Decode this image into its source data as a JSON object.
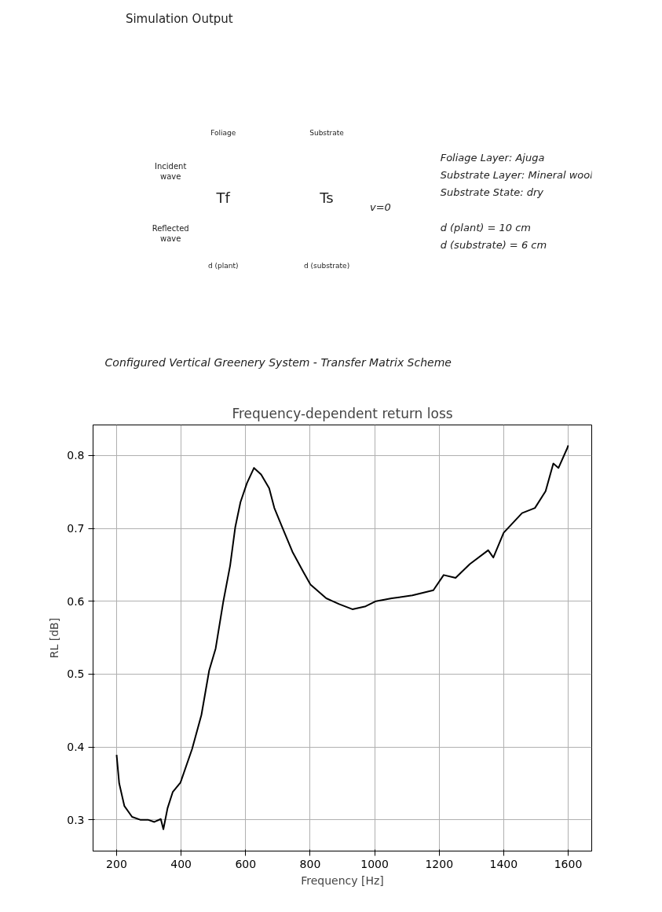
{
  "chart_data": [
    {
      "type": "other",
      "annotations": [
        "Simulation Output",
        "Foliage",
        "Substrate",
        "Incident\nwave",
        "Tf",
        "Ts",
        "Reflected\nwave",
        "d (plant)",
        "d (substrate)",
        "v=0",
        "Foliage Layer: Ajuga",
        "Substrate Layer: Mineral wool",
        "Substrate State: dry",
        "d (plant) = 10 cm",
        "d (substrate) = 6 cm",
        "Configured Vertical Greenery System - Transfer Matrix Scheme"
      ]
    },
    {
      "type": "line",
      "title": "Frequency-dependent return loss",
      "xlabel": "Frequency [Hz]",
      "ylabel": "RL [dB]",
      "series": [
        {
          "color": "#000000",
          "x": [
            200,
            208,
            224,
            248,
            273,
            297,
            317,
            337,
            345,
            358,
            374,
            398,
            434,
            463,
            487,
            507,
            531,
            552,
            568,
            584,
            604,
            626,
            648,
            673,
            689,
            713,
            745,
            778,
            801,
            850,
            890,
            931,
            972,
            1004,
            1053,
            1117,
            1182,
            1214,
            1251,
            1295,
            1352,
            1368,
            1400,
            1457,
            1497,
            1530,
            1554,
            1570,
            1598,
            1600
          ],
          "values": [
            0.389,
            0.35,
            0.319,
            0.304,
            0.3,
            0.3,
            0.297,
            0.301,
            0.287,
            0.316,
            0.338,
            0.351,
            0.397,
            0.444,
            0.505,
            0.535,
            0.6,
            0.649,
            0.702,
            0.736,
            0.762,
            0.783,
            0.774,
            0.755,
            0.728,
            0.702,
            0.668,
            0.641,
            0.623,
            0.604,
            0.596,
            0.589,
            0.593,
            0.6,
            0.604,
            0.608,
            0.615,
            0.636,
            0.632,
            0.651,
            0.67,
            0.66,
            0.694,
            0.721,
            0.728,
            0.751,
            0.789,
            0.783,
            0.811,
            0.814
          ]
        }
      ],
      "xlim": [
        127,
        1673
      ],
      "ylim": [
        0.257,
        0.842
      ],
      "xticks": [
        200,
        400,
        600,
        800,
        1000,
        1200,
        1400,
        1600
      ],
      "yticks": [
        0.3,
        0.4,
        0.5,
        0.6,
        0.7,
        0.8
      ],
      "grid": true,
      "line_style": "solid",
      "marker": "none"
    }
  ]
}
